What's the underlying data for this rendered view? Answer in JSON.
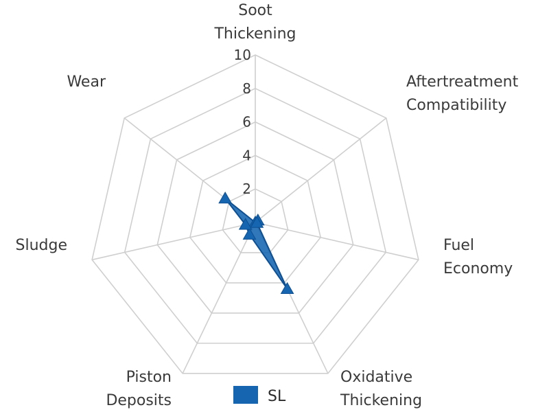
{
  "chart_data": {
    "type": "radar",
    "axes": [
      [
        "Soot",
        "Thickening"
      ],
      [
        "Aftertreatment",
        "Compatibility"
      ],
      [
        "Fuel",
        "Economy"
      ],
      [
        "Oxidative",
        "Thickening"
      ],
      [
        "Piston",
        "Deposits"
      ],
      [
        "Sludge"
      ],
      [
        "Wear"
      ]
    ],
    "rlim": [
      0,
      10
    ],
    "ticks": [
      "2",
      "4",
      "6",
      "8",
      "10"
    ],
    "grid": true,
    "legend_position": "bottom-center",
    "series": [
      {
        "name": "SL",
        "values": [
          0,
          0.2,
          0.1,
          4.4,
          0.8,
          0.6,
          2.3
        ],
        "color": "#1565b0"
      }
    ],
    "colors": {
      "grid": "#cfcfcf",
      "fill": "#1565b0",
      "stroke": "#0d4f92"
    }
  }
}
